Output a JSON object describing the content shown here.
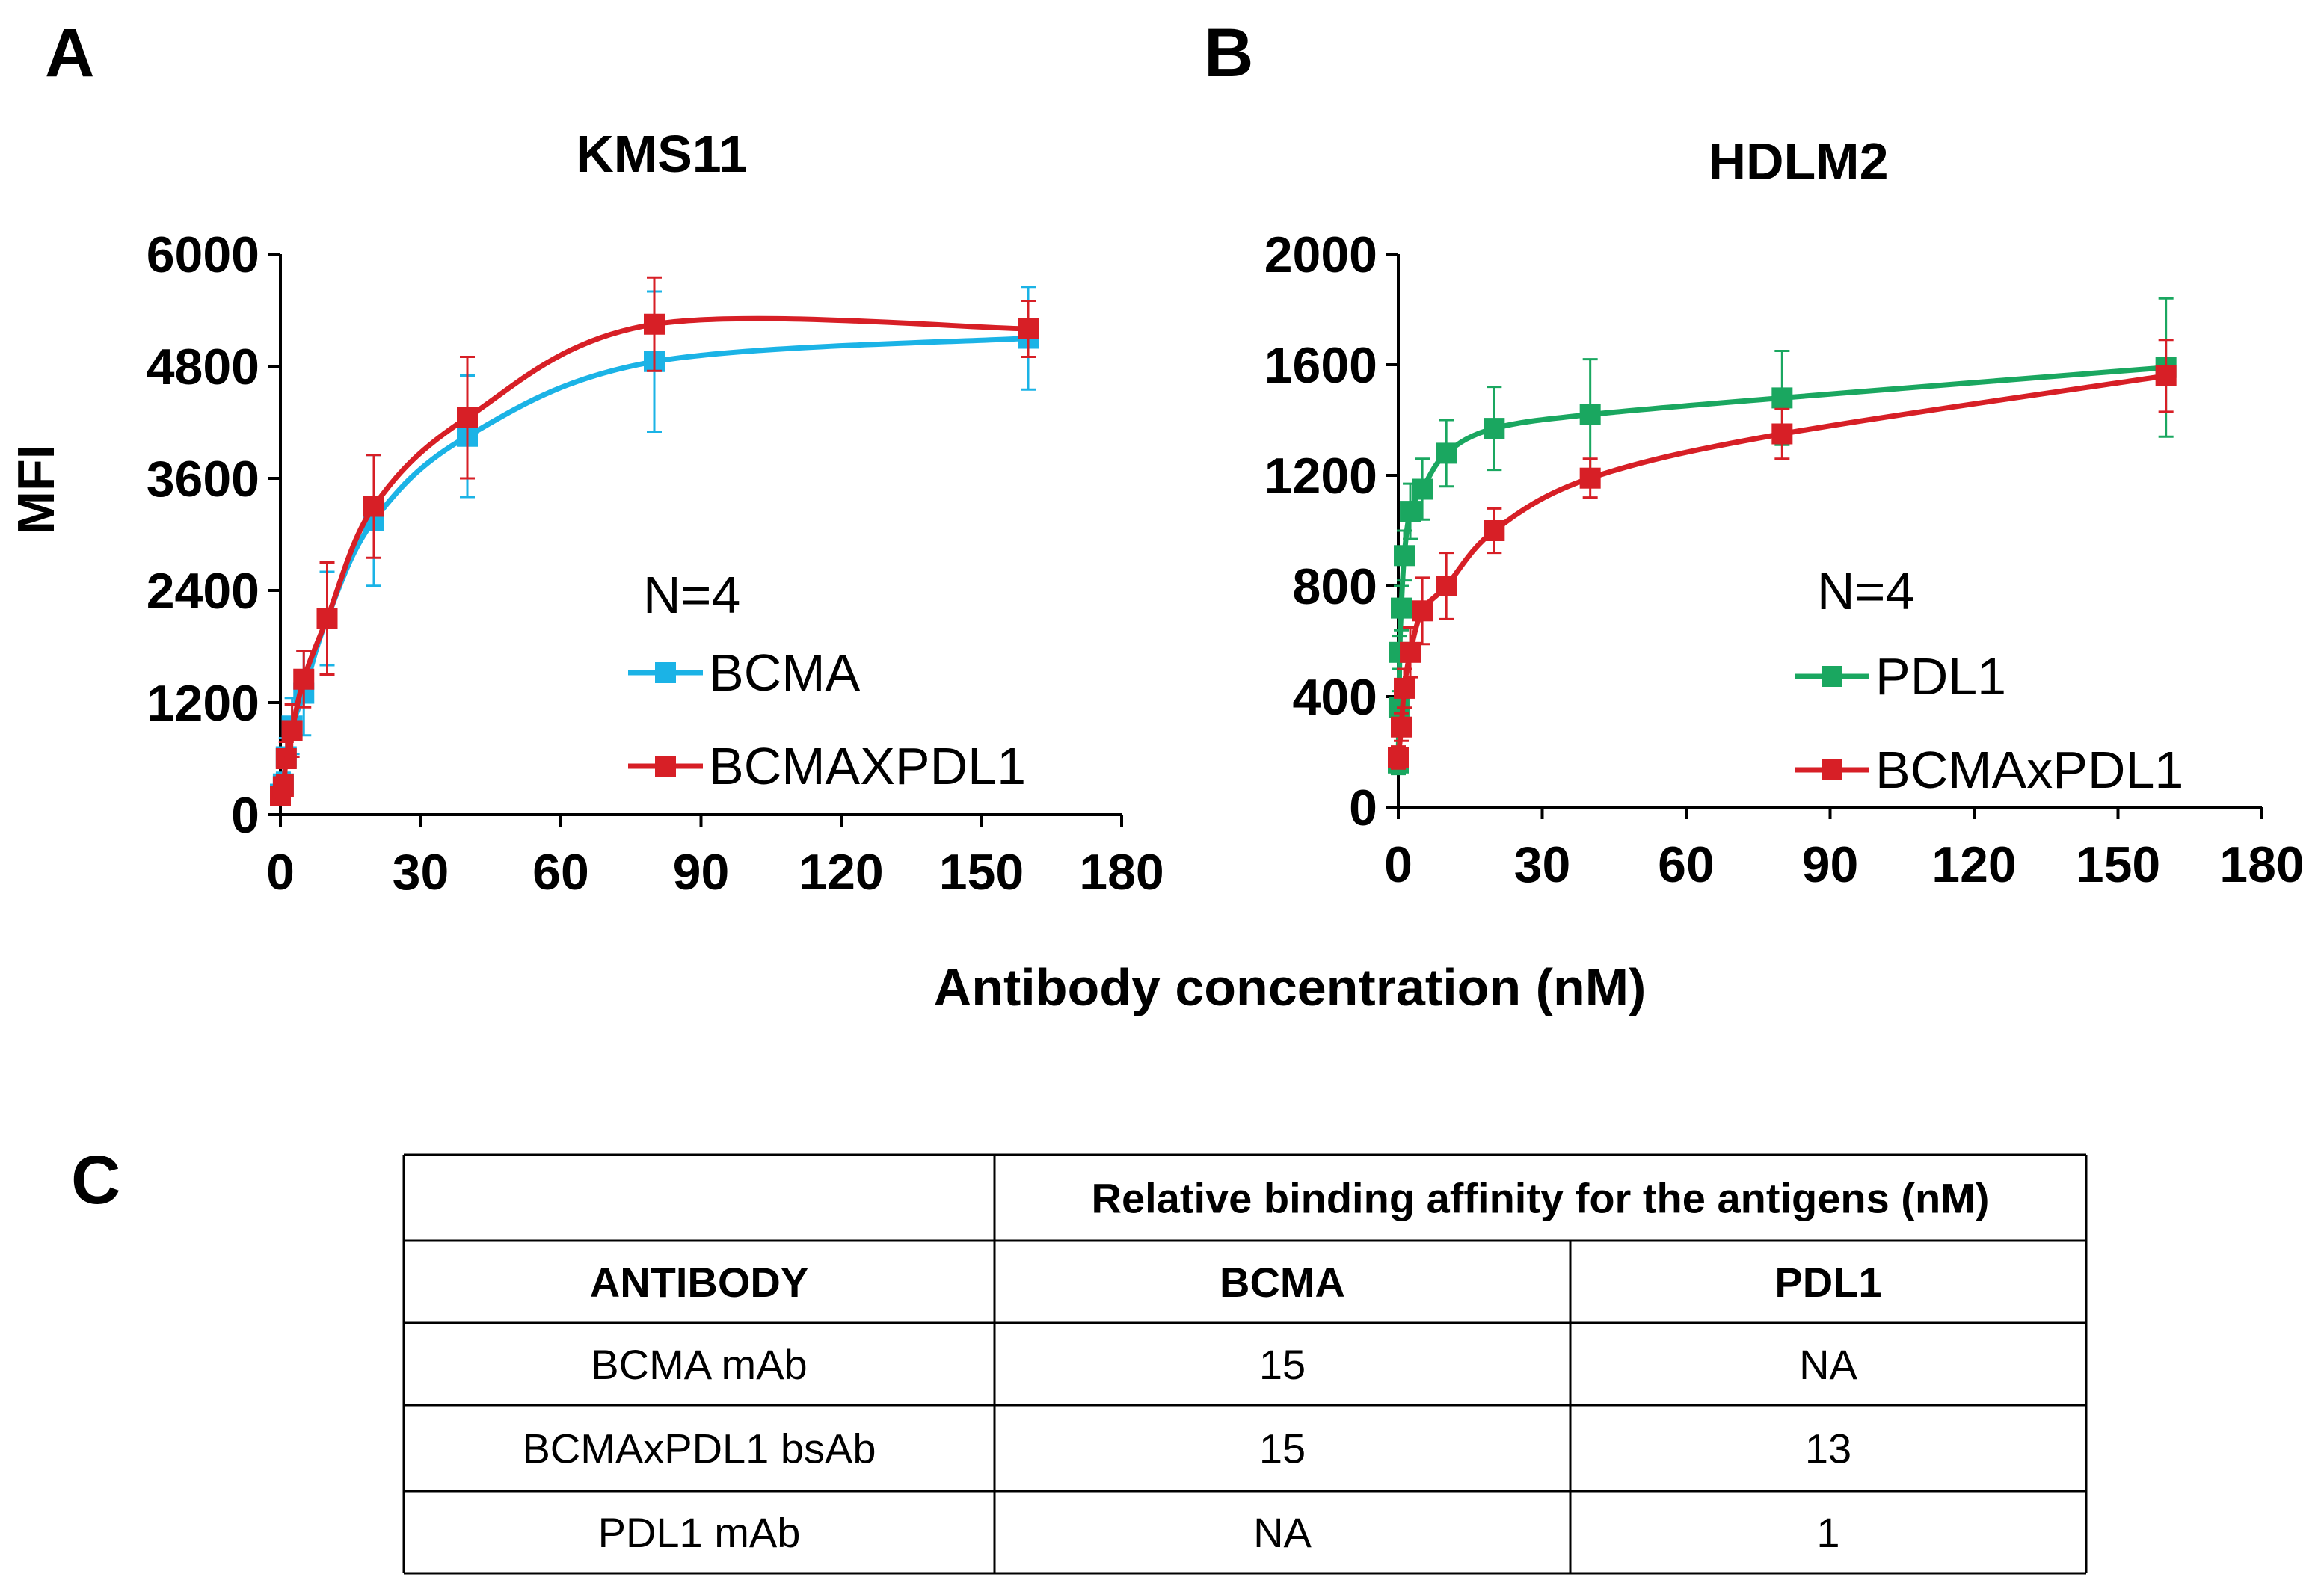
{
  "panels": {
    "a": "A",
    "b": "B",
    "c": "C"
  },
  "shared_xlabel": "Antibody concentration (nM)",
  "chart_data": [
    {
      "type": "line",
      "title": "KMS11",
      "xlabel": "",
      "ylabel": "MFI",
      "xlim": [
        0,
        180
      ],
      "ylim": [
        0,
        6000
      ],
      "xticks": [
        "0",
        "30",
        "60",
        "90",
        "120",
        "150",
        "180"
      ],
      "yticks": [
        "0",
        "1200",
        "2400",
        "3600",
        "4800",
        "6000"
      ],
      "annotation": "N=4",
      "series": [
        {
          "name": "BCMA",
          "color": "#1bb3e6",
          "x": [
            0,
            0.625,
            1.25,
            2.5,
            5,
            10,
            20,
            40,
            80,
            160
          ],
          "y": [
            220,
            330,
            620,
            950,
            1300,
            2100,
            3150,
            4050,
            4850,
            5100
          ],
          "err": [
            80,
            120,
            200,
            300,
            450,
            500,
            700,
            650,
            750,
            550
          ]
        },
        {
          "name": "BCMAXPDL1",
          "color": "#d71f26",
          "x": [
            0,
            0.625,
            1.25,
            2.5,
            5,
            10,
            20,
            40,
            80,
            160
          ],
          "y": [
            200,
            300,
            600,
            900,
            1450,
            2100,
            3300,
            4250,
            5250,
            5200
          ],
          "err": [
            70,
            120,
            180,
            280,
            300,
            600,
            550,
            650,
            500,
            300
          ]
        }
      ]
    },
    {
      "type": "line",
      "title": "HDLM2",
      "xlabel": "",
      "ylabel": "",
      "xlim": [
        0,
        180
      ],
      "ylim": [
        0,
        2000
      ],
      "xticks": [
        "0",
        "30",
        "60",
        "90",
        "120",
        "150",
        "180"
      ],
      "yticks": [
        "0",
        "400",
        "800",
        "1200",
        "1600",
        "2000"
      ],
      "annotation": "N=4",
      "series": [
        {
          "name": "PDL1",
          "color": "#1aa760",
          "x": [
            0,
            0.15,
            0.3,
            0.625,
            1.25,
            2.5,
            5,
            10,
            20,
            40,
            80,
            160
          ],
          "y": [
            160,
            360,
            560,
            720,
            910,
            1070,
            1150,
            1280,
            1370,
            1420,
            1480,
            1590
          ],
          "err": [
            40,
            60,
            60,
            80,
            90,
            100,
            110,
            120,
            150,
            200,
            170,
            250
          ]
        },
        {
          "name": "BCMAxPDL1",
          "color": "#d71f26",
          "x": [
            0,
            0.625,
            1.25,
            2.5,
            5,
            10,
            20,
            40,
            80,
            160
          ],
          "y": [
            180,
            290,
            430,
            560,
            710,
            800,
            1000,
            1190,
            1350,
            1560
          ],
          "err": [
            40,
            50,
            70,
            90,
            120,
            120,
            80,
            70,
            90,
            130
          ]
        }
      ]
    },
    {
      "type": "table",
      "group_header": "Relative binding affinity for the antigens (nM)",
      "columns": [
        "ANTIBODY",
        "BCMA",
        "PDL1"
      ],
      "rows": [
        [
          "BCMA mAb",
          "15",
          "NA"
        ],
        [
          "BCMAxPDL1 bsAb",
          "15",
          "13"
        ],
        [
          "PDL1 mAb",
          "NA",
          "1"
        ]
      ]
    }
  ]
}
